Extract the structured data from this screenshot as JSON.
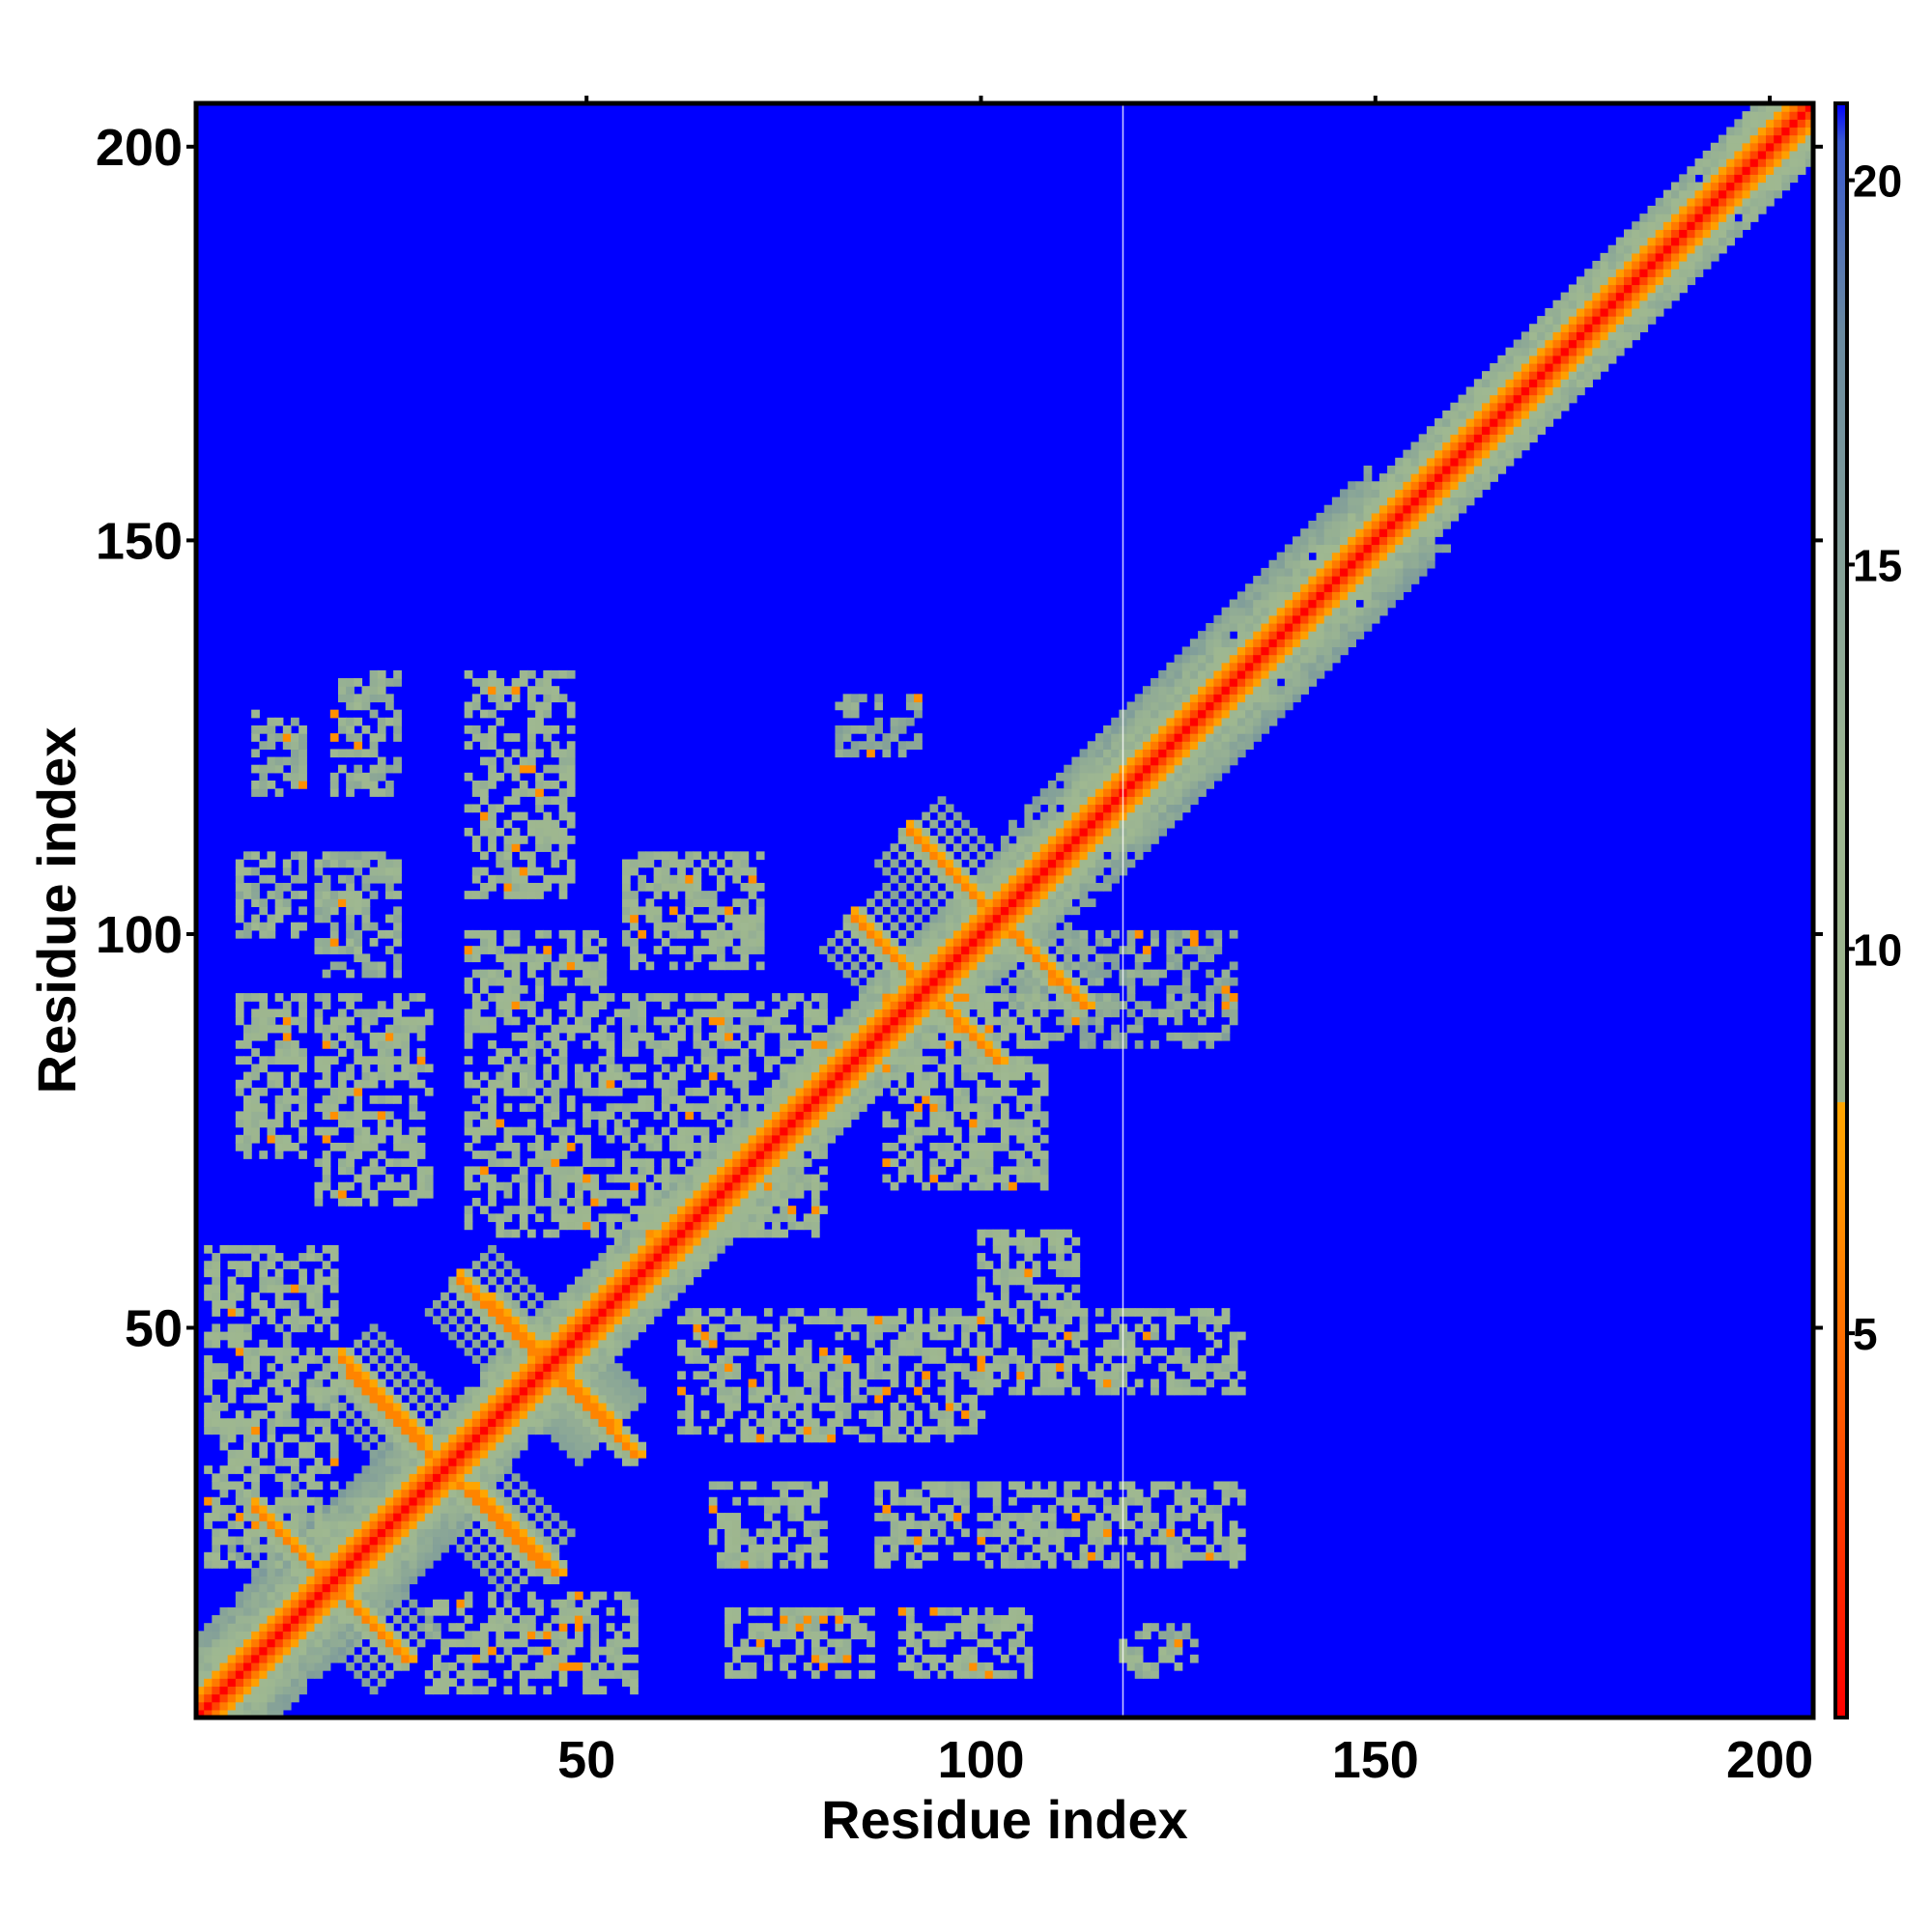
{
  "chart_data": {
    "type": "heatmap",
    "title": "",
    "xlabel": "Residue index",
    "ylabel": "Residue index",
    "xlim": [
      1,
      205
    ],
    "ylim": [
      1,
      205
    ],
    "x_ticks": [
      50,
      100,
      150,
      200
    ],
    "y_ticks": [
      50,
      100,
      150,
      200
    ],
    "x_tick_labels": [
      "50",
      "100",
      "150",
      "200"
    ],
    "y_tick_labels": [
      "50",
      "100",
      "150",
      "200"
    ],
    "colorbar": {
      "ticks": [
        5,
        10,
        15,
        20
      ],
      "tick_labels": [
        "5",
        "10",
        "15",
        "20"
      ],
      "range": [
        0,
        21
      ],
      "stops": [
        {
          "value": 0,
          "color": "#ff0000"
        },
        {
          "value": 4,
          "color": "#ff5a00"
        },
        {
          "value": 7,
          "color": "#ff9900"
        },
        {
          "value": 8,
          "color": "#ffa500"
        },
        {
          "value": 8.01,
          "color": "#9ab28a"
        },
        {
          "value": 12,
          "color": "#9fb891"
        },
        {
          "value": 18,
          "color": "#6a8aa0"
        },
        {
          "value": 20.5,
          "color": "#3a5ad0"
        },
        {
          "value": 21,
          "color": "#0000ff"
        }
      ]
    },
    "background_value": 21,
    "grid": false,
    "colors": {
      "background": "#0000ff",
      "contact_close": "#ff0000",
      "contact_mid": "#ffa500",
      "contact_far": "#9fb891"
    },
    "diagonal_band": {
      "description_value": "distance rises with |i-j|",
      "center_value": 0,
      "sequence_range": [
        1,
        205
      ]
    },
    "antiparallel_contacts": [
      {
        "i": [
          9,
          17
        ],
        "j": [
          26,
          18
        ],
        "value": 6
      },
      {
        "i": [
          19,
          27
        ],
        "j": [
          16,
          8
        ],
        "value": 6
      },
      {
        "i": [
          19,
          29
        ],
        "j": [
          46,
          36
        ],
        "value": 6
      },
      {
        "i": [
          34,
          44
        ],
        "j": [
          30,
          20
        ],
        "value": 6
      },
      {
        "i": [
          34,
          53
        ],
        "j": [
          56,
          37
        ],
        "value": 6
      },
      {
        "i": [
          44,
          53
        ],
        "j": [
          47,
          38
        ],
        "value": 6
      },
      {
        "i": [
          84,
          95
        ],
        "j": [
          102,
          83
        ],
        "value": 6
      },
      {
        "i": [
          91,
          111
        ],
        "j": [
          113,
          93
        ],
        "value": 6
      }
    ],
    "contact_blocks": [
      {
        "x": [
          8,
          14
        ],
        "y": [
          118,
          128
        ],
        "value": 13
      },
      {
        "x": [
          18,
          26
        ],
        "y": [
          118,
          133
        ],
        "value": 13
      },
      {
        "x": [
          6,
          14
        ],
        "y": [
          100,
          110
        ],
        "value": 13
      },
      {
        "x": [
          16,
          26
        ],
        "y": [
          95,
          110
        ],
        "value": 13
      },
      {
        "x": [
          6,
          14
        ],
        "y": [
          72,
          92
        ],
        "value": 12
      },
      {
        "x": [
          16,
          30
        ],
        "y": [
          66,
          92
        ],
        "value": 12
      },
      {
        "x": [
          35,
          48
        ],
        "y": [
          105,
          133
        ],
        "value": 12
      },
      {
        "x": [
          35,
          52
        ],
        "y": [
          62,
          100
        ],
        "value": 12
      },
      {
        "x": [
          55,
          72
        ],
        "y": [
          96,
          110
        ],
        "value": 12
      },
      {
        "x": [
          50,
          80
        ],
        "y": [
          62,
          92
        ],
        "value": 12
      },
      {
        "x": [
          88,
          108
        ],
        "y": [
          68,
          92
        ],
        "value": 12
      },
      {
        "x": [
          100,
          112
        ],
        "y": [
          42,
          62
        ],
        "value": 12
      },
      {
        "x": [
          110,
          133
        ],
        "y": [
          42,
          52
        ],
        "value": 12
      },
      {
        "x": [
          62,
          100
        ],
        "y": [
          36,
          52
        ],
        "value": 12
      },
      {
        "x": [
          66,
          80
        ],
        "y": [
          20,
          30
        ],
        "value": 12
      },
      {
        "x": [
          87,
          98
        ],
        "y": [
          20,
          30
        ],
        "value": 12
      },
      {
        "x": [
          100,
          133
        ],
        "y": [
          20,
          30
        ],
        "value": 12
      },
      {
        "x": [
          68,
          86
        ],
        "y": [
          6,
          14
        ],
        "value": 12
      },
      {
        "x": [
          90,
          106
        ],
        "y": [
          6,
          14
        ],
        "value": 12
      },
      {
        "x": [
          118,
          127
        ],
        "y": [
          6,
          12
        ],
        "value": 13
      },
      {
        "x": [
          30,
          56
        ],
        "y": [
          4,
          16
        ],
        "value": 12
      },
      {
        "x": [
          2,
          18
        ],
        "y": [
          20,
          60
        ],
        "value": 12
      },
      {
        "x": [
          105,
          132
        ],
        "y": [
          86,
          100
        ],
        "value": 14
      },
      {
        "x": [
          82,
          92
        ],
        "y": [
          123,
          130
        ],
        "value": 14
      }
    ],
    "vertical_line_x": 118
  }
}
